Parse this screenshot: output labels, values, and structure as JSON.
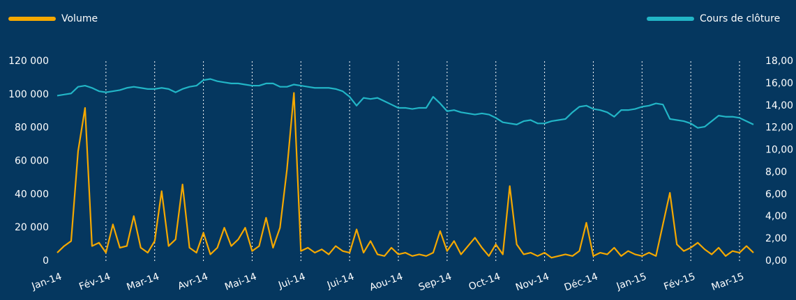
{
  "chart_data": {
    "type": "line",
    "categories": [
      "Jan-14",
      null,
      null,
      null,
      null,
      null,
      null,
      "Fév-14",
      null,
      null,
      null,
      null,
      null,
      null,
      "Mar-14",
      null,
      null,
      null,
      null,
      null,
      null,
      "Avr-14",
      null,
      null,
      null,
      null,
      null,
      null,
      "Mai-14",
      null,
      null,
      null,
      null,
      null,
      null,
      "Jui-14",
      null,
      null,
      null,
      null,
      null,
      null,
      "Jui-14",
      null,
      null,
      null,
      null,
      null,
      null,
      "Aou-14",
      null,
      null,
      null,
      null,
      null,
      null,
      "Sep-14",
      null,
      null,
      null,
      null,
      null,
      null,
      "Oct-14",
      null,
      null,
      null,
      null,
      null,
      null,
      "Nov-14",
      null,
      null,
      null,
      null,
      null,
      null,
      "Déc-14",
      null,
      null,
      null,
      null,
      null,
      null,
      "Jan-15",
      null,
      null,
      null,
      null,
      null,
      null,
      "Fév-15",
      null,
      null,
      null,
      null,
      null,
      null,
      "Mar-15",
      null,
      null
    ],
    "series": [
      {
        "name": "Volume",
        "color": "#f5a800",
        "axis": "y",
        "values": [
          5000,
          9000,
          12000,
          66000,
          92000,
          9000,
          11000,
          5000,
          22000,
          8000,
          9000,
          27000,
          8000,
          5000,
          12000,
          42000,
          9000,
          13000,
          46000,
          8000,
          5000,
          17000,
          4000,
          8000,
          20000,
          9000,
          13000,
          20000,
          6000,
          9000,
          26000,
          8000,
          20000,
          55000,
          101000,
          6000,
          8000,
          5000,
          7000,
          4000,
          9000,
          6000,
          5000,
          19000,
          5000,
          12000,
          4000,
          3000,
          8000,
          4000,
          5000,
          3000,
          4000,
          3000,
          5000,
          18000,
          6000,
          12000,
          4000,
          9000,
          14000,
          8000,
          3000,
          10000,
          4000,
          45000,
          10000,
          4000,
          5000,
          3000,
          5000,
          2000,
          3000,
          4000,
          3000,
          6000,
          23000,
          3000,
          5000,
          4000,
          8000,
          3000,
          6000,
          4000,
          3000,
          5000,
          3000,
          22000,
          41000,
          10000,
          6000,
          8000,
          11000,
          7000,
          4000,
          8000,
          3000,
          6000,
          5000,
          9000,
          5000
        ]
      },
      {
        "name": "Cours de clôture",
        "color": "#22b5c6",
        "axis": "y2",
        "values": [
          14.9,
          15.0,
          15.1,
          15.7,
          15.8,
          15.6,
          15.3,
          15.2,
          15.3,
          15.4,
          15.6,
          15.7,
          15.6,
          15.5,
          15.5,
          15.6,
          15.5,
          15.2,
          15.5,
          15.7,
          15.8,
          16.3,
          16.4,
          16.2,
          16.1,
          16.0,
          16.0,
          15.9,
          15.8,
          15.8,
          16.0,
          16.0,
          15.7,
          15.7,
          15.9,
          15.8,
          15.7,
          15.6,
          15.6,
          15.6,
          15.5,
          15.3,
          14.8,
          14.0,
          14.7,
          14.6,
          14.7,
          14.4,
          14.1,
          13.8,
          13.8,
          13.7,
          13.8,
          13.8,
          14.8,
          14.2,
          13.5,
          13.6,
          13.4,
          13.3,
          13.2,
          13.3,
          13.2,
          12.9,
          12.5,
          12.4,
          12.3,
          12.6,
          12.7,
          12.4,
          12.4,
          12.6,
          12.7,
          12.8,
          13.4,
          13.9,
          14.0,
          13.7,
          13.6,
          13.4,
          13.0,
          13.6,
          13.6,
          13.7,
          13.9,
          14.0,
          14.2,
          14.1,
          12.8,
          12.7,
          12.6,
          12.4,
          12.0,
          12.1,
          12.6,
          13.1,
          13.0,
          13.0,
          12.9,
          12.6,
          12.3
        ]
      }
    ],
    "ylim": [
      0,
      120000
    ],
    "yticks": [
      0,
      {
        "value": 20000,
        "label": "20 000"
      },
      {
        "value": 40000,
        "label": "40 000"
      },
      {
        "value": 60000,
        "label": "60 000"
      },
      {
        "value": 80000,
        "label": "80 000"
      },
      {
        "value": 100000,
        "label": "100 000"
      },
      {
        "value": 120000,
        "label": "120 000"
      }
    ],
    "y2lim": [
      0,
      18
    ],
    "y2ticks": [
      {
        "value": 0,
        "label": "0,00"
      },
      {
        "value": 2,
        "label": "2,00"
      },
      {
        "value": 4,
        "label": "4,00"
      },
      {
        "value": 6,
        "label": "6,00"
      },
      {
        "value": 8,
        "label": "8,00"
      },
      {
        "value": 10,
        "label": "10,00"
      },
      {
        "value": 12,
        "label": "12,00"
      },
      {
        "value": 14,
        "label": "14,00"
      },
      {
        "value": 16,
        "label": "16,00"
      },
      {
        "value": 18,
        "label": "18,00"
      }
    ],
    "grid": "x"
  }
}
